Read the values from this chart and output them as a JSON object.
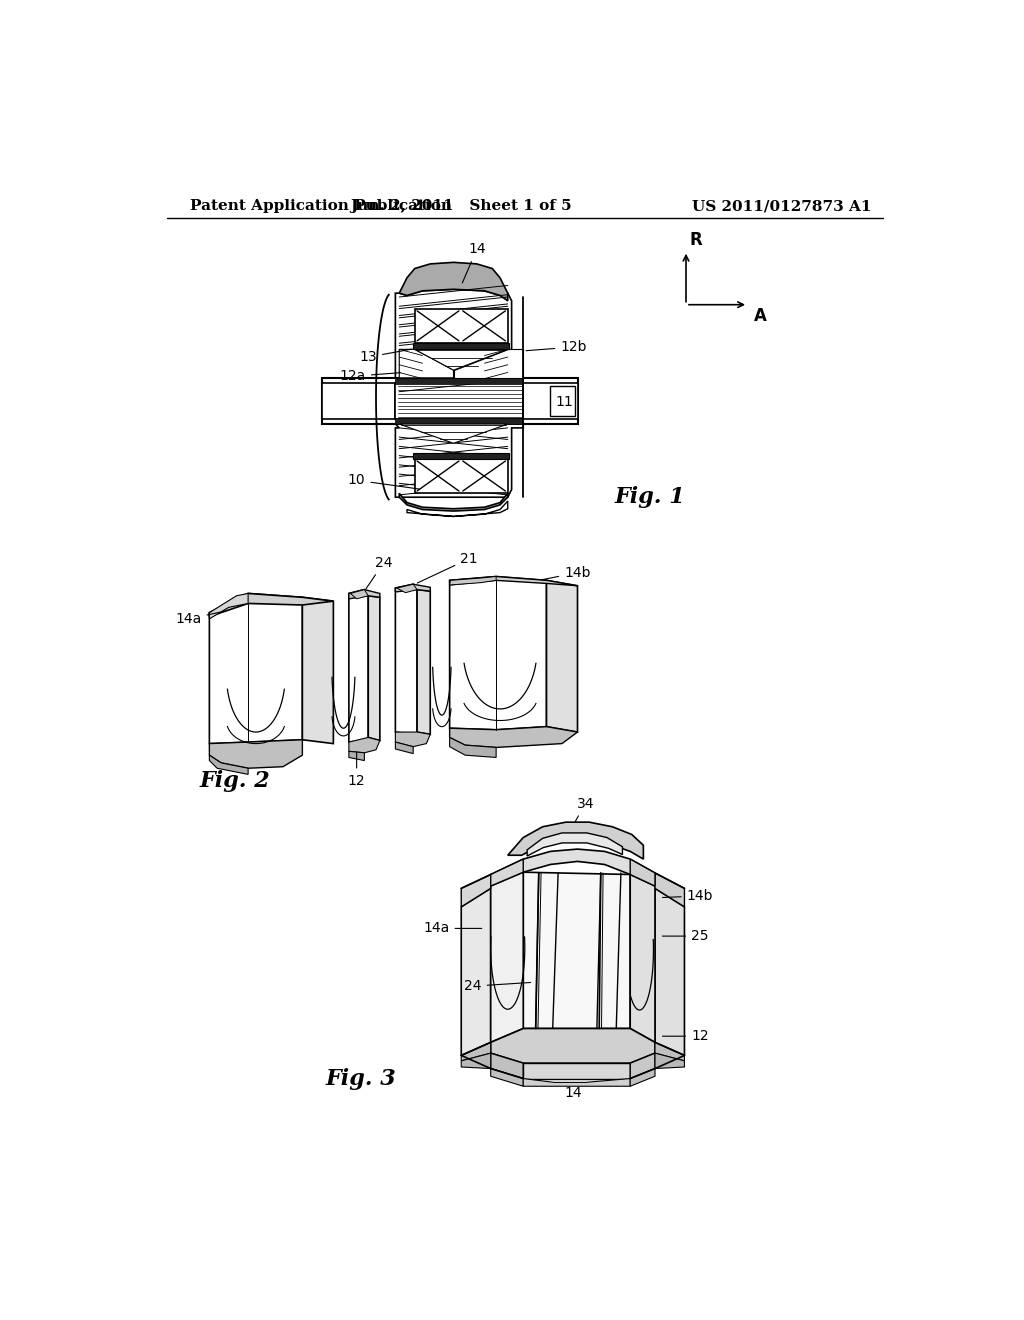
{
  "background_color": "#ffffff",
  "header_left": "Patent Application Publication",
  "header_center": "Jun. 2, 2011   Sheet 1 of 5",
  "header_right": "US 2011/0127873 A1",
  "header_fontsize": 11,
  "fig1_label": "Fig. 1",
  "fig2_label": "Fig. 2",
  "fig3_label": "Fig. 3",
  "fig_label_fontsize": 16,
  "annotation_fontsize": 10,
  "axis_R_label": "R",
  "axis_A_label": "A",
  "line_color": "#000000",
  "hatch_color": "#000000"
}
